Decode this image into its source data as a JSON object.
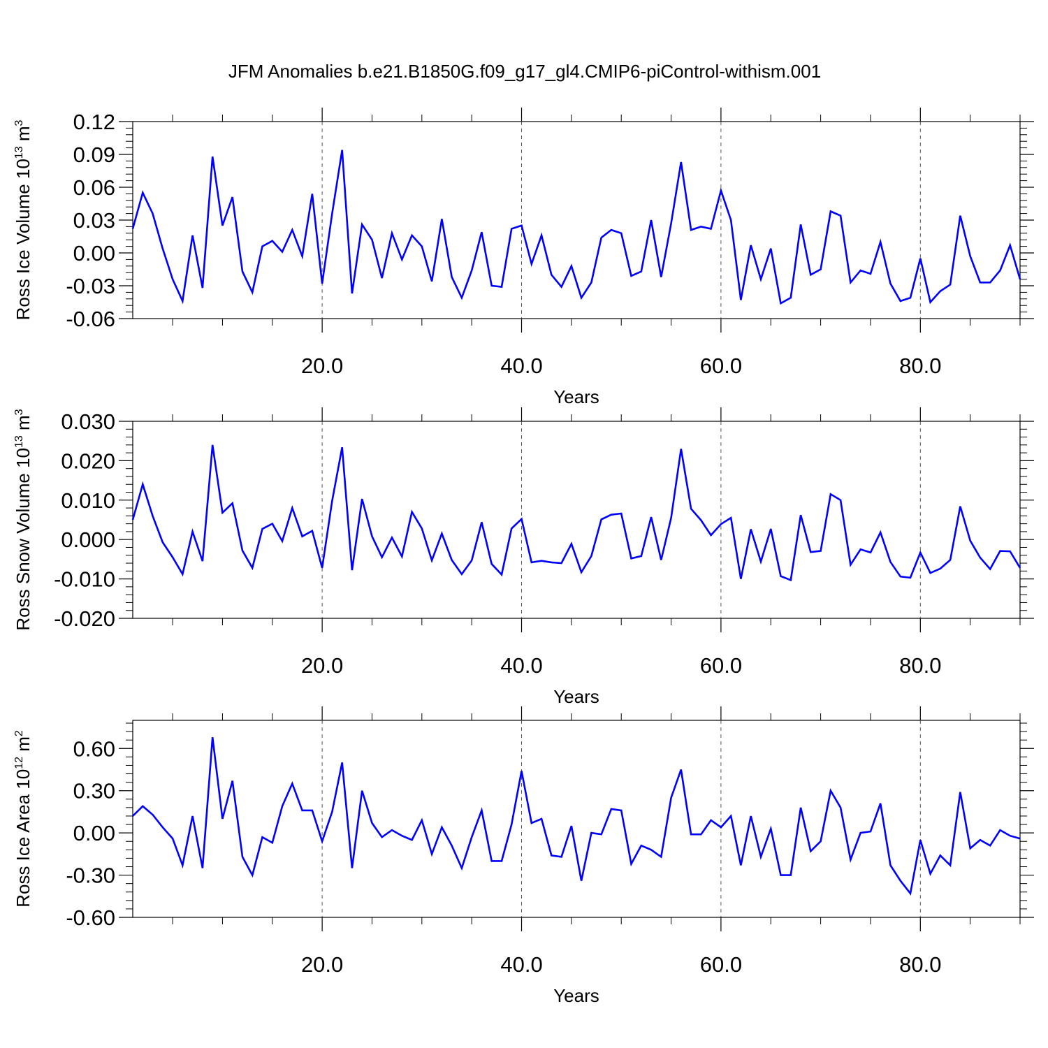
{
  "title": "JFM Anomalies b.e21.B1850G.f09_g17_gl4.CMIP6-piControl-withism.001",
  "chart_data": [
    {
      "type": "line",
      "ylabel_main": "Ross Ice Volume 10",
      "ylabel_exp": "13",
      "ylabel_unit": "m",
      "ylabel_unit_exp": "3",
      "xlabel": "Years",
      "xlim": [
        1,
        90
      ],
      "ylim": [
        -0.06,
        0.12
      ],
      "yticks": [
        -0.06,
        -0.03,
        0.0,
        0.03,
        0.06,
        0.09,
        0.12
      ],
      "ytick_labels": [
        "-0.06",
        "-0.03",
        "0.00",
        "0.03",
        "0.06",
        "0.09",
        "0.12"
      ],
      "xticks": [
        20,
        40,
        60,
        80
      ],
      "xtick_labels": [
        "20.0",
        "40.0",
        "60.0",
        "80.0"
      ],
      "grid_x": true,
      "line_color": "#0000ff",
      "x": [
        1,
        2,
        3,
        4,
        5,
        6,
        7,
        8,
        9,
        10,
        11,
        12,
        13,
        14,
        15,
        16,
        17,
        18,
        19,
        20,
        21,
        22,
        23,
        24,
        25,
        26,
        27,
        28,
        29,
        30,
        31,
        32,
        33,
        34,
        35,
        36,
        37,
        38,
        39,
        40,
        41,
        42,
        43,
        44,
        45,
        46,
        47,
        48,
        49,
        50,
        51,
        52,
        53,
        54,
        55,
        56,
        57,
        58,
        59,
        60,
        61,
        62,
        63,
        64,
        65,
        66,
        67,
        68,
        69,
        70,
        71,
        72,
        73,
        74,
        75,
        76,
        77,
        78,
        79,
        80,
        81,
        82,
        83,
        84,
        85,
        86,
        87,
        88,
        89,
        90
      ],
      "values": [
        0.022,
        0.055,
        0.036,
        0.004,
        -0.024,
        -0.044,
        0.016,
        -0.032,
        0.088,
        0.025,
        0.051,
        -0.017,
        -0.036,
        0.006,
        0.011,
        0.001,
        0.021,
        -0.003,
        0.054,
        -0.028,
        0.036,
        0.094,
        -0.037,
        0.026,
        0.012,
        -0.023,
        0.018,
        -0.006,
        0.016,
        0.006,
        -0.026,
        0.031,
        -0.022,
        -0.041,
        -0.016,
        0.019,
        -0.03,
        -0.031,
        0.022,
        0.025,
        -0.01,
        0.016,
        -0.02,
        -0.031,
        -0.012,
        -0.041,
        -0.027,
        0.014,
        0.021,
        0.018,
        -0.021,
        -0.017,
        0.03,
        -0.022,
        0.027,
        0.083,
        0.021,
        0.024,
        0.022,
        0.057,
        0.03,
        -0.043,
        0.007,
        -0.024,
        0.004,
        -0.046,
        -0.041,
        0.026,
        -0.02,
        -0.015,
        0.038,
        0.034,
        -0.027,
        -0.016,
        -0.019,
        0.01,
        -0.028,
        -0.044,
        -0.041,
        -0.005,
        -0.045,
        -0.035,
        -0.029,
        0.034,
        -0.003,
        -0.027,
        -0.027,
        -0.016,
        0.007,
        -0.024
      ]
    },
    {
      "type": "line",
      "ylabel_main": "Ross Snow Volume 10",
      "ylabel_exp": "13",
      "ylabel_unit": "m",
      "ylabel_unit_exp": "3",
      "xlabel": "Years",
      "xlim": [
        1,
        90
      ],
      "ylim": [
        -0.02,
        0.03
      ],
      "yticks": [
        -0.02,
        -0.01,
        0.0,
        0.01,
        0.02,
        0.03
      ],
      "ytick_labels": [
        "-0.020",
        "-0.010",
        "0.000",
        "0.010",
        "0.020",
        "0.030"
      ],
      "xticks": [
        20,
        40,
        60,
        80
      ],
      "xtick_labels": [
        "20.0",
        "40.0",
        "60.0",
        "80.0"
      ],
      "grid_x": true,
      "line_color": "#0000ff",
      "x": [
        1,
        2,
        3,
        4,
        5,
        6,
        7,
        8,
        9,
        10,
        11,
        12,
        13,
        14,
        15,
        16,
        17,
        18,
        19,
        20,
        21,
        22,
        23,
        24,
        25,
        26,
        27,
        28,
        29,
        30,
        31,
        32,
        33,
        34,
        35,
        36,
        37,
        38,
        39,
        40,
        41,
        42,
        43,
        44,
        45,
        46,
        47,
        48,
        49,
        50,
        51,
        52,
        53,
        54,
        55,
        56,
        57,
        58,
        59,
        60,
        61,
        62,
        63,
        64,
        65,
        66,
        67,
        68,
        69,
        70,
        71,
        72,
        73,
        74,
        75,
        76,
        77,
        78,
        79,
        80,
        81,
        82,
        83,
        84,
        85,
        86,
        87,
        88,
        89,
        90
      ],
      "values": [
        0.005,
        0.014,
        0.006,
        -0.0007,
        -0.0045,
        -0.0088,
        0.002,
        -0.0055,
        0.024,
        0.0068,
        0.0092,
        -0.0028,
        -0.0072,
        0.0027,
        0.004,
        -0.0004,
        0.008,
        0.0008,
        0.0022,
        -0.0072,
        0.0098,
        0.0234,
        -0.0078,
        0.0103,
        0.0008,
        -0.0045,
        0.0005,
        -0.0043,
        0.007,
        0.0028,
        -0.0053,
        0.0015,
        -0.0052,
        -0.0088,
        -0.0053,
        0.0044,
        -0.0062,
        -0.0089,
        0.0028,
        0.0052,
        -0.0058,
        -0.0054,
        -0.0058,
        -0.006,
        -0.0011,
        -0.0083,
        -0.0042,
        0.0051,
        0.0063,
        0.0066,
        -0.0048,
        -0.0042,
        0.0057,
        -0.0052,
        0.0055,
        0.023,
        0.0078,
        0.0049,
        0.0011,
        0.0039,
        0.0055,
        -0.01,
        0.0026,
        -0.0056,
        0.0027,
        -0.0093,
        -0.0103,
        0.0062,
        -0.0032,
        -0.0029,
        0.0115,
        0.01,
        -0.0064,
        -0.0025,
        -0.0033,
        0.0018,
        -0.0057,
        -0.0094,
        -0.0097,
        -0.0033,
        -0.0085,
        -0.0074,
        -0.0052,
        0.0084,
        -0.0003,
        -0.0046,
        -0.0075,
        -0.0029,
        -0.003,
        -0.0072
      ]
    },
    {
      "type": "line",
      "ylabel_main": "Ross Ice Area 10",
      "ylabel_exp": "12",
      "ylabel_unit": "m",
      "ylabel_unit_exp": "2",
      "xlabel": "Years",
      "xlim": [
        1,
        90
      ],
      "ylim": [
        -0.6,
        0.8
      ],
      "yticks": [
        -0.6,
        -0.3,
        0.0,
        0.3,
        0.6
      ],
      "ytick_labels": [
        "-0.60",
        "-0.30",
        "0.00",
        "0.30",
        "0.60"
      ],
      "xticks": [
        20,
        40,
        60,
        80
      ],
      "xtick_labels": [
        "20.0",
        "40.0",
        "60.0",
        "80.0"
      ],
      "grid_x": true,
      "line_color": "#0000ff",
      "x": [
        1,
        2,
        3,
        4,
        5,
        6,
        7,
        8,
        9,
        10,
        11,
        12,
        13,
        14,
        15,
        16,
        17,
        18,
        19,
        20,
        21,
        22,
        23,
        24,
        25,
        26,
        27,
        28,
        29,
        30,
        31,
        32,
        33,
        34,
        35,
        36,
        37,
        38,
        39,
        40,
        41,
        42,
        43,
        44,
        45,
        46,
        47,
        48,
        49,
        50,
        51,
        52,
        53,
        54,
        55,
        56,
        57,
        58,
        59,
        60,
        61,
        62,
        63,
        64,
        65,
        66,
        67,
        68,
        69,
        70,
        71,
        72,
        73,
        74,
        75,
        76,
        77,
        78,
        79,
        80,
        81,
        82,
        83,
        84,
        85,
        86,
        87,
        88,
        89,
        90
      ],
      "values": [
        0.12,
        0.19,
        0.13,
        0.04,
        -0.04,
        -0.23,
        0.12,
        -0.25,
        0.68,
        0.1,
        0.37,
        -0.17,
        -0.3,
        -0.03,
        -0.07,
        0.19,
        0.35,
        0.16,
        0.16,
        -0.06,
        0.15,
        0.5,
        -0.25,
        0.3,
        0.07,
        -0.03,
        0.02,
        -0.02,
        -0.05,
        0.09,
        -0.15,
        0.04,
        -0.09,
        -0.25,
        -0.03,
        0.16,
        -0.2,
        -0.2,
        0.06,
        0.44,
        0.07,
        0.1,
        -0.16,
        -0.17,
        0.05,
        -0.34,
        0.0,
        -0.01,
        0.17,
        0.16,
        -0.22,
        -0.09,
        -0.12,
        -0.17,
        0.25,
        0.45,
        -0.01,
        -0.01,
        0.09,
        0.04,
        0.12,
        -0.23,
        0.12,
        -0.17,
        0.03,
        -0.3,
        -0.3,
        0.18,
        -0.13,
        -0.06,
        0.3,
        0.18,
        -0.19,
        0.0,
        0.01,
        0.21,
        -0.23,
        -0.34,
        -0.43,
        -0.05,
        -0.29,
        -0.16,
        -0.23,
        0.29,
        -0.11,
        -0.05,
        -0.09,
        0.02,
        -0.02,
        -0.04
      ]
    }
  ]
}
